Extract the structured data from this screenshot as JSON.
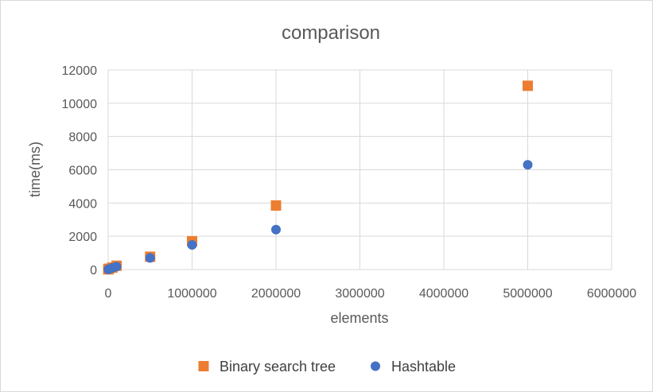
{
  "chart_data": {
    "type": "scatter",
    "title": "comparison",
    "xlabel": "elements",
    "ylabel": "time(ms)",
    "xlim": [
      0,
      6000000
    ],
    "ylim": [
      0,
      12000
    ],
    "x_ticks": [
      "0",
      "1000000",
      "2000000",
      "3000000",
      "4000000",
      "5000000",
      "6000000"
    ],
    "y_ticks": [
      "0",
      "2000",
      "4000",
      "6000",
      "8000",
      "10000",
      "12000"
    ],
    "grid": true,
    "legend_position": "bottom",
    "series": [
      {
        "name": "Binary search tree",
        "marker": "square",
        "color": "#ED7D31",
        "points": [
          {
            "x": 1000,
            "y": 10
          },
          {
            "x": 10000,
            "y": 50
          },
          {
            "x": 50000,
            "y": 120
          },
          {
            "x": 100000,
            "y": 230
          },
          {
            "x": 500000,
            "y": 770
          },
          {
            "x": 1000000,
            "y": 1700
          },
          {
            "x": 2000000,
            "y": 3850
          },
          {
            "x": 5000000,
            "y": 11050
          }
        ]
      },
      {
        "name": "Hashtable",
        "marker": "circle",
        "color": "#4472C4",
        "points": [
          {
            "x": 1000,
            "y": 5
          },
          {
            "x": 10000,
            "y": 30
          },
          {
            "x": 50000,
            "y": 100
          },
          {
            "x": 100000,
            "y": 180
          },
          {
            "x": 500000,
            "y": 700
          },
          {
            "x": 1000000,
            "y": 1480
          },
          {
            "x": 2000000,
            "y": 2400
          },
          {
            "x": 5000000,
            "y": 6300
          }
        ]
      }
    ]
  }
}
